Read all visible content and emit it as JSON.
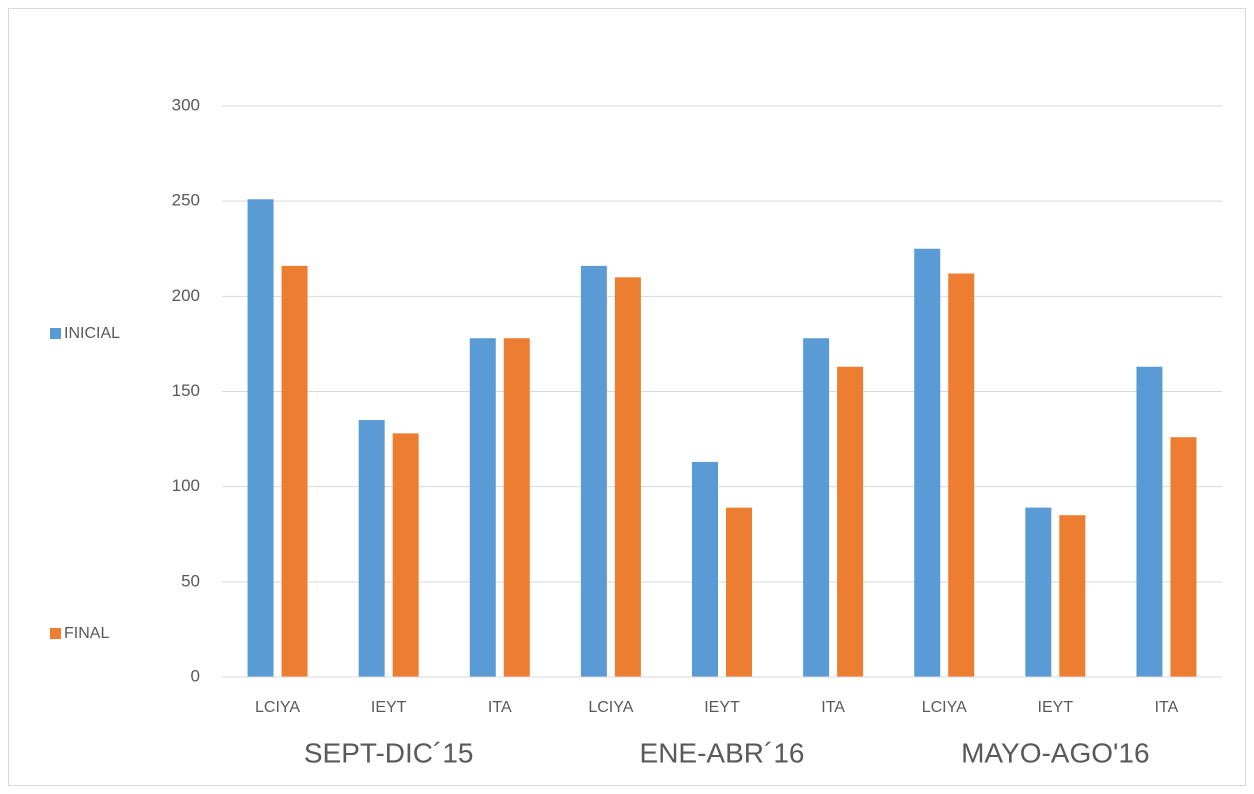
{
  "chart_data": {
    "type": "bar",
    "categories": [
      "LCIYA",
      "IEYT",
      "ITA",
      "LCIYA",
      "IEYT",
      "ITA",
      "LCIYA",
      "IEYT",
      "ITA"
    ],
    "group_labels": [
      "SEPT-DIC´15",
      "ENE-ABR´16",
      "MAYO-AGO'16"
    ],
    "series": [
      {
        "name": "INICIAL",
        "color": "#5b9bd5",
        "values": [
          251,
          135,
          178,
          216,
          113,
          178,
          225,
          89,
          163
        ]
      },
      {
        "name": "FINAL",
        "color": "#ed7d31",
        "values": [
          216,
          128,
          178,
          210,
          89,
          163,
          212,
          85,
          126
        ]
      }
    ],
    "ylim": [
      0,
      300
    ],
    "yticks": [
      0,
      50,
      100,
      150,
      200,
      250,
      300
    ],
    "grid": true,
    "legend": "left"
  }
}
